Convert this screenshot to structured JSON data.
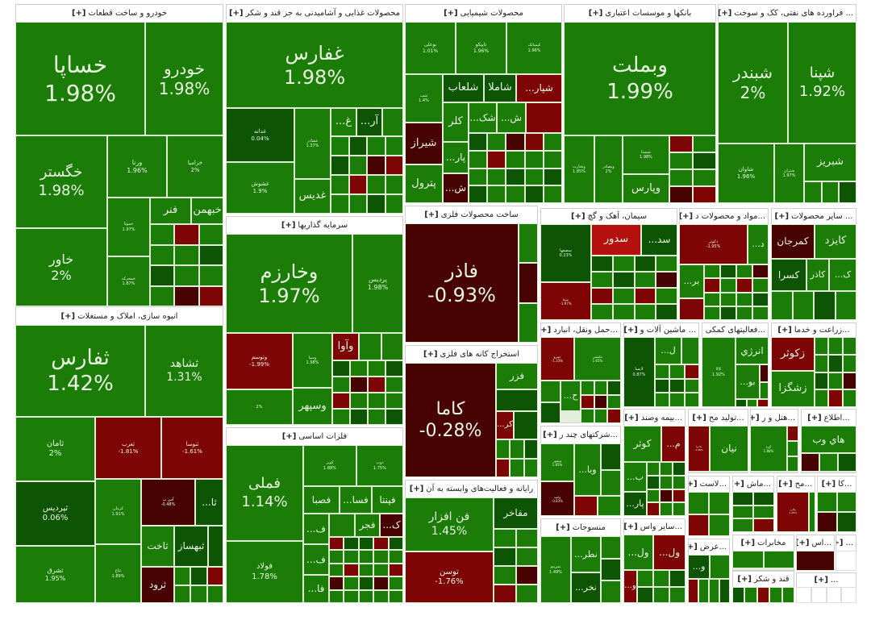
{
  "expand_label": "[+]",
  "colors": {
    "up": "#1b7d08",
    "up_weak": "#0e5405",
    "down": "#7d0505",
    "down_strong": "#470202",
    "down_bright": "#b50f0f",
    "header_bg": "#ffffff"
  },
  "sectors": [
    {
      "name": "خودرو و ساخت قطعات",
      "tiles": [
        {
          "symbol": "خساپا",
          "change": "1.98%",
          "tone": "g"
        },
        {
          "symbol": "خودرو",
          "change": "1.98%",
          "tone": "g"
        },
        {
          "symbol": "خگستر",
          "change": "1.98%",
          "tone": "g"
        },
        {
          "symbol": "ورنا",
          "change": "1.96%",
          "tone": "g"
        },
        {
          "symbol": "خزامیا",
          "change": "2%",
          "tone": "g"
        },
        {
          "symbol": "خاور",
          "change": "2%",
          "tone": "g"
        },
        {
          "symbol": "خموتا",
          "change": "1.97%",
          "tone": "g"
        },
        {
          "symbol": "خمحرکه",
          "change": "1.87%",
          "tone": "g"
        },
        {
          "symbol": "فنر",
          "change": "",
          "tone": "g"
        },
        {
          "symbol": "خبهمن",
          "change": "",
          "tone": "g"
        }
      ]
    },
    {
      "name": "محصولات غذایی و آشامیدنی به جز قند و شکر",
      "tiles": [
        {
          "symbol": "غفارس",
          "change": "1.98%",
          "tone": "g"
        },
        {
          "symbol": "غدانه",
          "change": "0.04%",
          "tone": "dg"
        },
        {
          "symbol": "غشوش",
          "change": "1.9%",
          "tone": "g"
        },
        {
          "symbol": "غشاذر",
          "change": "1.37%",
          "tone": "g"
        },
        {
          "symbol": "غدیس",
          "change": "",
          "tone": "g"
        },
        {
          "symbol": "...غ",
          "change": "",
          "tone": "g"
        },
        {
          "symbol": "...آر",
          "change": "",
          "tone": "dg"
        }
      ]
    },
    {
      "name": "محصولات شیمیایی",
      "tiles": [
        {
          "symbol": "بوعلی",
          "change": "1.01%",
          "tone": "g"
        },
        {
          "symbol": "تاپیکو",
          "change": "1.96%",
          "tone": "g"
        },
        {
          "symbol": "کیمیاتک",
          "change": "1.96%",
          "tone": "g"
        },
        {
          "symbol": "شب",
          "change": "1.4%",
          "tone": "g"
        },
        {
          "symbol": "شلعاب",
          "change": "",
          "tone": "dg"
        },
        {
          "symbol": "شاملا",
          "change": "",
          "tone": "dg"
        },
        {
          "symbol": "...شپار",
          "change": "",
          "tone": "r"
        },
        {
          "symbol": "شیراز",
          "change": "",
          "tone": "dr"
        },
        {
          "symbol": "پترول",
          "change": "",
          "tone": "g"
        },
        {
          "symbol": "کلر",
          "change": "",
          "tone": "g"
        },
        {
          "symbol": "...شک",
          "change": "",
          "tone": "g"
        },
        {
          "symbol": "...ش",
          "change": "",
          "tone": "g"
        },
        {
          "symbol": "",
          "change": "",
          "tone": "r"
        },
        {
          "symbol": "...پار",
          "change": "",
          "tone": "g"
        },
        {
          "symbol": "...ش",
          "change": "",
          "tone": "dr"
        }
      ]
    },
    {
      "name": "بانکها و موسسات اعتباری",
      "tiles": [
        {
          "symbol": "وبملت",
          "change": "1.99%",
          "tone": "g"
        },
        {
          "symbol": "وتجارت",
          "change": "1.85%",
          "tone": "g"
        },
        {
          "symbol": "وبصادر",
          "change": "2%",
          "tone": "g"
        },
        {
          "symbol": "شستا",
          "change": "1.98%",
          "tone": "g"
        },
        {
          "symbol": "وپارس",
          "change": "",
          "tone": "g"
        }
      ]
    },
    {
      "name": "... فراورده های نفتی، کک و سوخت",
      "tiles": [
        {
          "symbol": "شبندر",
          "change": "2%",
          "tone": "g"
        },
        {
          "symbol": "شپنا",
          "change": "1.92%",
          "tone": "g"
        },
        {
          "symbol": "شاوان",
          "change": "1.96%",
          "tone": "g"
        },
        {
          "symbol": "شتران",
          "change": "1.97%",
          "tone": "g"
        },
        {
          "symbol": "شبریز",
          "change": "",
          "tone": "g"
        }
      ]
    },
    {
      "name": "سرمایه گذاریها",
      "tiles": [
        {
          "symbol": "وخارزم",
          "change": "1.97%",
          "tone": "g"
        },
        {
          "symbol": "پردیس",
          "change": "1.98%",
          "tone": "g"
        },
        {
          "symbol": "وتوسم",
          "change": "-1.99%",
          "tone": "r"
        },
        {
          "symbol": "وسپا",
          "change": "1.98%",
          "tone": "g"
        },
        {
          "symbol": "وآوا",
          "change": "",
          "tone": "r"
        },
        {
          "symbol": "",
          "change": "2%",
          "tone": "g"
        },
        {
          "symbol": "وسپهر",
          "change": "",
          "tone": "g"
        }
      ]
    },
    {
      "name": "فلزات اساسی",
      "tiles": [
        {
          "symbol": "فملی",
          "change": "1.14%",
          "tone": "g"
        },
        {
          "symbol": "فولاد",
          "change": "1.78%",
          "tone": "g"
        },
        {
          "symbol": "کویر",
          "change": "1.88%",
          "tone": "g"
        },
        {
          "symbol": "ذوب",
          "change": "1.75%",
          "tone": "g"
        },
        {
          "symbol": "فصبا",
          "change": "",
          "tone": "g"
        },
        {
          "symbol": "...فسا",
          "change": "",
          "tone": "g"
        },
        {
          "symbol": "فپنتا",
          "change": "",
          "tone": "g"
        },
        {
          "symbol": "...ف",
          "change": "",
          "tone": "g"
        },
        {
          "symbol": "...ف",
          "change": "",
          "tone": "g"
        },
        {
          "symbol": "...فا",
          "change": "",
          "tone": "g"
        },
        {
          "symbol": "فجر",
          "change": "",
          "tone": "g"
        },
        {
          "symbol": "...ک",
          "change": "",
          "tone": "dr"
        }
      ]
    },
    {
      "name": "انبوه سازی، املاک و مستغلات",
      "tiles": [
        {
          "symbol": "ثفارس",
          "change": "1.42%",
          "tone": "g"
        },
        {
          "symbol": "ثشاهد",
          "change": "1.31%",
          "tone": "g"
        },
        {
          "symbol": "ثامان",
          "change": "2%",
          "tone": "g"
        },
        {
          "symbol": "ثپردیس",
          "change": "0.06%",
          "tone": "dg"
        },
        {
          "symbol": "ثشرق",
          "change": "1.95%",
          "tone": "g"
        },
        {
          "symbol": "ثغرب",
          "change": "-1.81%",
          "tone": "r"
        },
        {
          "symbol": "ثنوسا",
          "change": "-1.61%",
          "tone": "r"
        },
        {
          "symbol": "کرمان",
          "change": "1.91%",
          "tone": "g"
        },
        {
          "symbol": "ثباغ",
          "change": "1.89%",
          "tone": "g"
        },
        {
          "symbol": "آس پ",
          "change": "-0.48%",
          "tone": "dr"
        },
        {
          "symbol": "...ثا",
          "change": "",
          "tone": "dg"
        },
        {
          "symbol": "ثاخت",
          "change": "",
          "tone": "g"
        },
        {
          "symbol": "ثبهساز",
          "change": "",
          "tone": "dg"
        },
        {
          "symbol": "ثرود",
          "change": "",
          "tone": "dr"
        }
      ]
    },
    {
      "name": "ساخت محصولات فلزی",
      "tiles": [
        {
          "symbol": "فاذر",
          "change": "-0.93%",
          "tone": "dr"
        }
      ]
    },
    {
      "name": "استخراج کانه های فلزی",
      "tiles": [
        {
          "symbol": "کاما",
          "change": "-0.28%",
          "tone": "dr"
        },
        {
          "symbol": "فزر",
          "change": "",
          "tone": "g"
        },
        {
          "symbol": "",
          "change": "",
          "tone": "dg"
        },
        {
          "symbol": "...کر",
          "change": "",
          "tone": "r"
        }
      ]
    },
    {
      "name": "رایانه و فعالیت‌های وابسته به آن",
      "tiles": [
        {
          "symbol": "فن افزار",
          "change": "1.45%",
          "tone": "g"
        },
        {
          "symbol": "توسن",
          "change": "-1.76%",
          "tone": "r"
        },
        {
          "symbol": "مفاخر",
          "change": "",
          "tone": "dg"
        }
      ]
    },
    {
      "name": "سیمان، آهک و گچ",
      "tiles": [
        {
          "symbol": "سصفها",
          "change": "0.23%",
          "tone": "dg"
        },
        {
          "symbol": "سیتا",
          "change": "-1.97%",
          "tone": "r"
        },
        {
          "symbol": "سدور",
          "change": "",
          "tone": "br"
        },
        {
          "symbol": "...سد",
          "change": "",
          "tone": "dg"
        }
      ]
    },
    {
      "name": "...مواد و محصولات د",
      "tiles": [
        {
          "symbol": "دکوثر",
          "change": "-1.95%",
          "tone": "r"
        },
        {
          "symbol": "...د",
          "change": "",
          "tone": "g"
        },
        {
          "symbol": "...بر",
          "change": "",
          "tone": "g"
        }
      ]
    },
    {
      "name": "... سایر محصولات",
      "tiles": [
        {
          "symbol": "کمرجان",
          "change": "",
          "tone": "dr"
        },
        {
          "symbol": "کایزد",
          "change": "",
          "tone": "g"
        },
        {
          "symbol": "کسرا",
          "change": "",
          "tone": "dg"
        },
        {
          "symbol": "کاذر",
          "change": "",
          "tone": "g"
        },
        {
          "symbol": "...ک",
          "change": "",
          "tone": "g"
        }
      ]
    },
    {
      "name": "...حمل ونقل، انبارد",
      "tiles": [
        {
          "symbol": "حپترو",
          "change": "-1.33%",
          "tone": "r"
        },
        {
          "symbol": "حکشتی",
          "change": "1.65%",
          "tone": "g"
        },
        {
          "symbol": "...ح",
          "change": "",
          "tone": "g"
        }
      ]
    },
    {
      "name": "... ماشین آلات و",
      "tiles": [
        {
          "symbol": "لابسا",
          "change": "0.87%",
          "tone": "dg"
        },
        {
          "symbol": "...ل",
          "change": "",
          "tone": "g"
        }
      ]
    },
    {
      "name": "...فعالیتهای کمکی",
      "tiles": [
        {
          "symbol": "کالا",
          "change": "1.92%",
          "tone": "g"
        },
        {
          "symbol": "انرژي",
          "change": "",
          "tone": "g"
        },
        {
          "symbol": "...بو",
          "change": "",
          "tone": "g"
        }
      ]
    },
    {
      "name": "...زراعت و خدما",
      "tiles": [
        {
          "symbol": "زکوثر",
          "change": "",
          "tone": "r"
        },
        {
          "symbol": "زشگزا",
          "change": "",
          "tone": "g"
        }
      ]
    },
    {
      "name": "...شرکتهای چند ر",
      "tiles": [
        {
          "symbol": "وبشهر",
          "change": "1.85%",
          "tone": "g"
        },
        {
          "symbol": "...وبا",
          "change": "",
          "tone": "g"
        },
        {
          "symbol": "وامید",
          "change": "-0.83%",
          "tone": "dr"
        }
      ]
    },
    {
      "name": "منسوجات",
      "tiles": [
        {
          "symbol": "نمرینو",
          "change": "1.49%",
          "tone": "g"
        },
        {
          "symbol": "...نطر",
          "change": "",
          "tone": "g"
        },
        {
          "symbol": "...نخر",
          "change": "",
          "tone": "dg"
        }
      ]
    },
    {
      "name": "...بیمه وصند",
      "tiles": [
        {
          "symbol": "کوثر",
          "change": "",
          "tone": "g"
        },
        {
          "symbol": "...م",
          "change": "",
          "tone": "r"
        },
        {
          "symbol": "...ب",
          "change": "",
          "tone": "g"
        },
        {
          "symbol": "...پار",
          "change": "",
          "tone": "dg"
        }
      ]
    },
    {
      "name": "...سایر واس",
      "tiles": [
        {
          "symbol": "...ول",
          "change": "",
          "tone": "g"
        },
        {
          "symbol": "...ول",
          "change": "",
          "tone": "r"
        },
        {
          "symbol": "...و",
          "change": "",
          "tone": "r"
        }
      ]
    },
    {
      "name": "...تولید مح",
      "tiles": [
        {
          "symbol": "مادیرا",
          "change": "-1.98%",
          "tone": "r"
        },
        {
          "symbol": "نیان",
          "change": "",
          "tone": "g"
        }
      ]
    },
    {
      "name": "...هتل و ر",
      "tiles": [
        {
          "symbol": "گندا",
          "change": "1.88%",
          "tone": "g"
        }
      ]
    },
    {
      "name": "...اطلاع",
      "tiles": [
        {
          "symbol": "هاي وب",
          "change": "",
          "tone": "g"
        }
      ]
    },
    {
      "name": "...لاست",
      "tiles": []
    },
    {
      "name": "...ماش",
      "tiles": []
    },
    {
      "name": "...مح",
      "tiles": [
        {
          "symbol": "وکارن",
          "change": "-1.55%",
          "tone": "r"
        }
      ]
    },
    {
      "name": "...کا",
      "tiles": []
    },
    {
      "name": "...عرض",
      "tiles": [
        {
          "symbol": "...و",
          "change": "",
          "tone": "dg"
        }
      ]
    },
    {
      "name": "مخابرات",
      "tiles": []
    },
    {
      "name": "قند و شکر",
      "tiles": []
    },
    {
      "name": "...اس",
      "tiles": []
    },
    {
      "name": "...",
      "tiles": []
    },
    {
      "name": "...",
      "tiles": []
    }
  ]
}
